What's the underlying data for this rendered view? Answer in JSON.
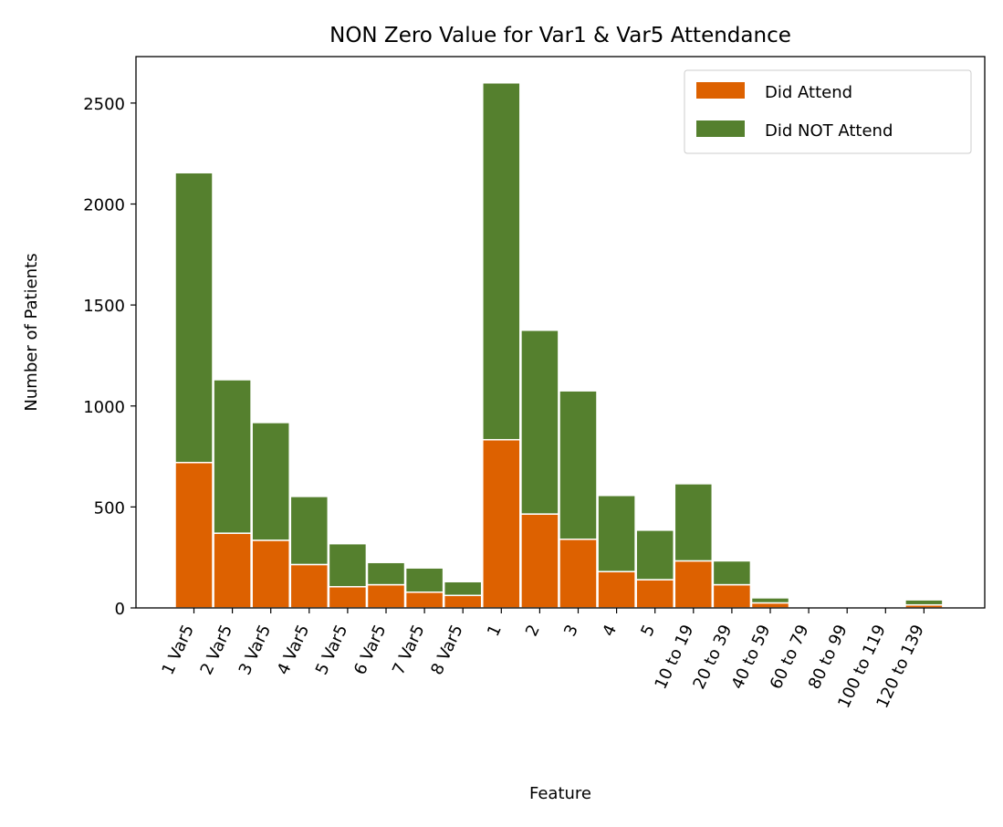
{
  "chart_data": {
    "type": "bar",
    "stacked": true,
    "title": "NON Zero Value for Var1 & Var5 Attendance",
    "xlabel": "Feature",
    "ylabel": "Number of Patients",
    "ylim": [
      0,
      2730
    ],
    "yticks": [
      0,
      500,
      1000,
      1500,
      2000,
      2500
    ],
    "legend_position": "top-right",
    "categories": [
      "1 Var5",
      "2 Var5",
      "3 Var5",
      "4 Var5",
      "5 Var5",
      "6 Var5",
      "7 Var5",
      "8 Var5",
      "1",
      "2",
      "3",
      "4",
      "5",
      "10 to 19",
      "20 to 39",
      "40 to 59",
      "60 to 79",
      "80 to 99",
      "100 to 119",
      "120 to 139"
    ],
    "series": [
      {
        "name": "Did Attend",
        "color": "#dd6100",
        "values": [
          720,
          370,
          335,
          215,
          105,
          115,
          78,
          62,
          833,
          465,
          340,
          180,
          140,
          233,
          115,
          25,
          0,
          0,
          0,
          15
        ]
      },
      {
        "name": "Did NOT Attend",
        "color": "#55802e",
        "values": [
          1435,
          760,
          583,
          337,
          213,
          110,
          120,
          68,
          1767,
          910,
          735,
          377,
          245,
          382,
          118,
          25,
          0,
          0,
          0,
          25
        ]
      }
    ]
  }
}
